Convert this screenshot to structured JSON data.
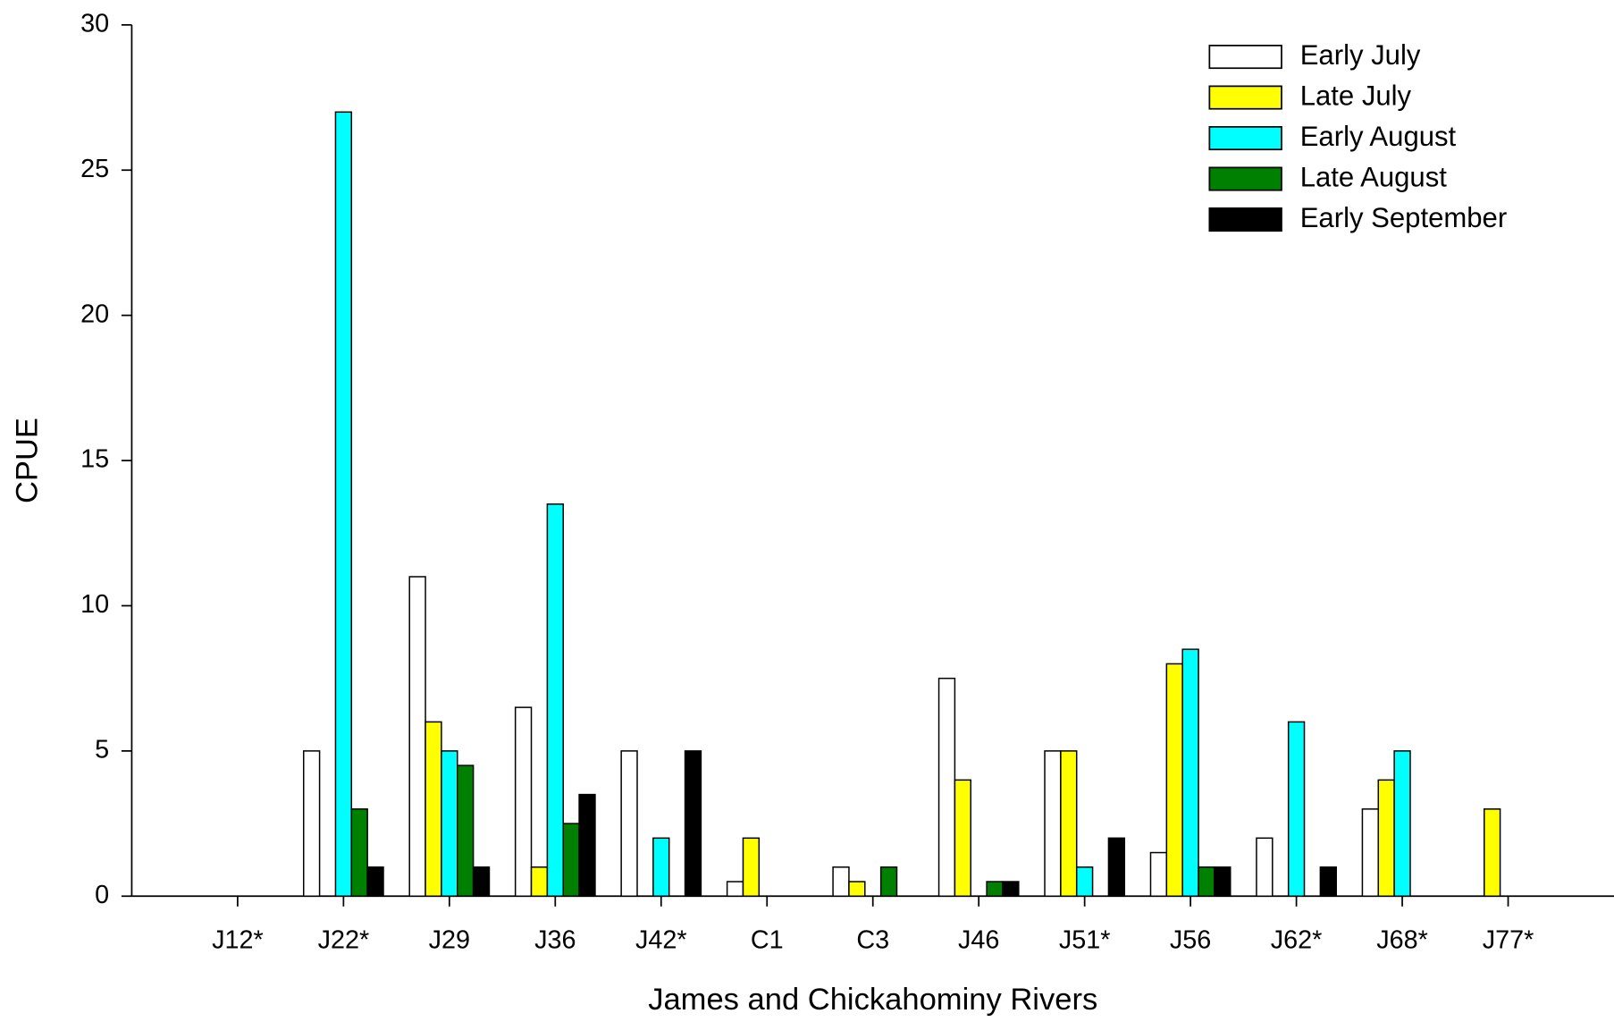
{
  "chart_data": {
    "type": "bar",
    "x_label": "James and Chickahominy Rivers",
    "y_label": "CPUE",
    "categories": [
      "J12*",
      "J22*",
      "J29",
      "J36",
      "J42*",
      "C1",
      "C3",
      "J46",
      "J51*",
      "J56",
      "J62*",
      "J68*",
      "J77*"
    ],
    "series": [
      {
        "name": "Early July",
        "color": "#ffffff",
        "values": [
          null,
          5,
          11,
          6.5,
          5,
          0.5,
          1,
          7.5,
          5,
          1.5,
          2,
          3,
          null
        ]
      },
      {
        "name": "Late July",
        "color": "#ffff00",
        "values": [
          null,
          null,
          6,
          1,
          null,
          2,
          0.5,
          4,
          5,
          8,
          null,
          4,
          3
        ]
      },
      {
        "name": "Early August",
        "color": "#00ffff",
        "values": [
          null,
          27,
          5,
          13.5,
          2,
          null,
          null,
          null,
          1,
          8.5,
          6,
          5,
          null
        ]
      },
      {
        "name": "Late August",
        "color": "#008000",
        "values": [
          null,
          3,
          4.5,
          2.5,
          null,
          null,
          1,
          0.5,
          null,
          1,
          null,
          null,
          null
        ]
      },
      {
        "name": "Early September",
        "color": "#000000",
        "values": [
          null,
          1,
          1,
          3.5,
          5,
          null,
          null,
          0.5,
          2,
          1,
          1,
          null,
          null
        ]
      }
    ],
    "ylim": [
      0,
      30
    ],
    "yticks": [
      0,
      5,
      10,
      15,
      20,
      25,
      30
    ],
    "grid": false,
    "legend": "upper right"
  }
}
